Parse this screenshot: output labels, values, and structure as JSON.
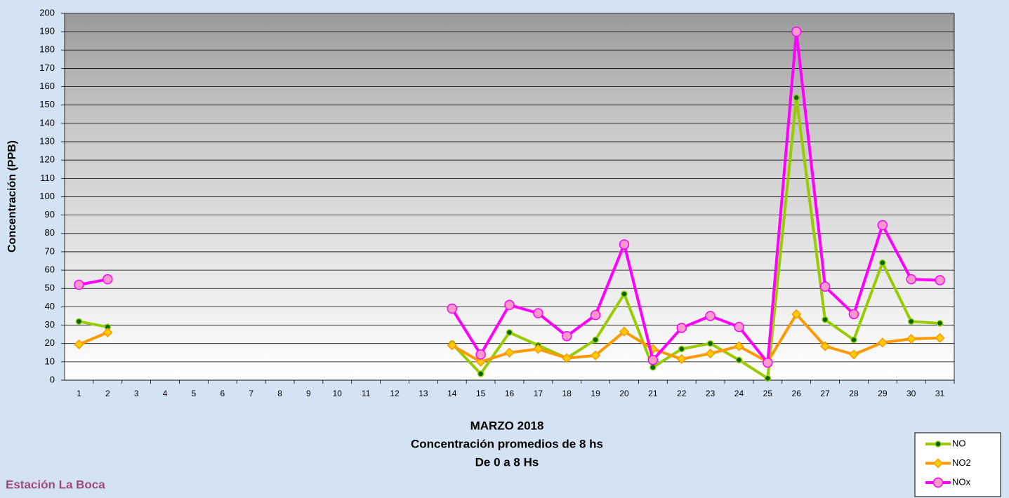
{
  "chart_data": {
    "type": "line",
    "title": "MARZO 2018",
    "subtitle": [
      "Concentración promedios de 8 hs",
      "De 0 a 8 Hs"
    ],
    "annotation": "Estación La Boca",
    "y_label": "Concentración  (PPB)",
    "categories": [
      "1",
      "2",
      "3",
      "4",
      "5",
      "6",
      "7",
      "8",
      "9",
      "10",
      "11",
      "12",
      "13",
      "14",
      "15",
      "16",
      "17",
      "18",
      "19",
      "20",
      "21",
      "22",
      "23",
      "24",
      "25",
      "26",
      "27",
      "28",
      "29",
      "30",
      "31"
    ],
    "series": [
      {
        "name": "NO",
        "color": "#99cc00",
        "marker_color": "#006600",
        "marker": "dot",
        "values": [
          32,
          29,
          null,
          null,
          null,
          null,
          null,
          null,
          null,
          null,
          null,
          null,
          null,
          20,
          3.5,
          26,
          19,
          12,
          22,
          47,
          7,
          17,
          20,
          11,
          1,
          154,
          33,
          22,
          64,
          32,
          31
        ]
      },
      {
        "name": "NO2",
        "color": "#ff9900",
        "marker_color": "#ffcc00",
        "marker": "diamond",
        "values": [
          19.5,
          26,
          null,
          null,
          null,
          null,
          null,
          null,
          null,
          null,
          null,
          null,
          null,
          19,
          10,
          15,
          17,
          12,
          13.5,
          26.5,
          17,
          11.5,
          14.5,
          18.5,
          10,
          36,
          18.5,
          14,
          20.5,
          22.5,
          23
        ]
      },
      {
        "name": "NOx",
        "color": "#ff00ff",
        "marker_color": "#ff99cc",
        "marker": "circle",
        "values": [
          52,
          55,
          null,
          null,
          null,
          null,
          null,
          null,
          null,
          null,
          null,
          null,
          null,
          39,
          14,
          41,
          36.5,
          24,
          35.5,
          74,
          11,
          28.5,
          35,
          29,
          9.5,
          190,
          51,
          36,
          84.5,
          55,
          54.5
        ]
      }
    ],
    "ylim": [
      0,
      200
    ],
    "yticks": [
      0,
      10,
      20,
      30,
      40,
      50,
      60,
      70,
      80,
      90,
      100,
      110,
      120,
      130,
      140,
      150,
      160,
      170,
      180,
      190,
      200
    ],
    "grid": true,
    "legend": "bottom-right"
  }
}
